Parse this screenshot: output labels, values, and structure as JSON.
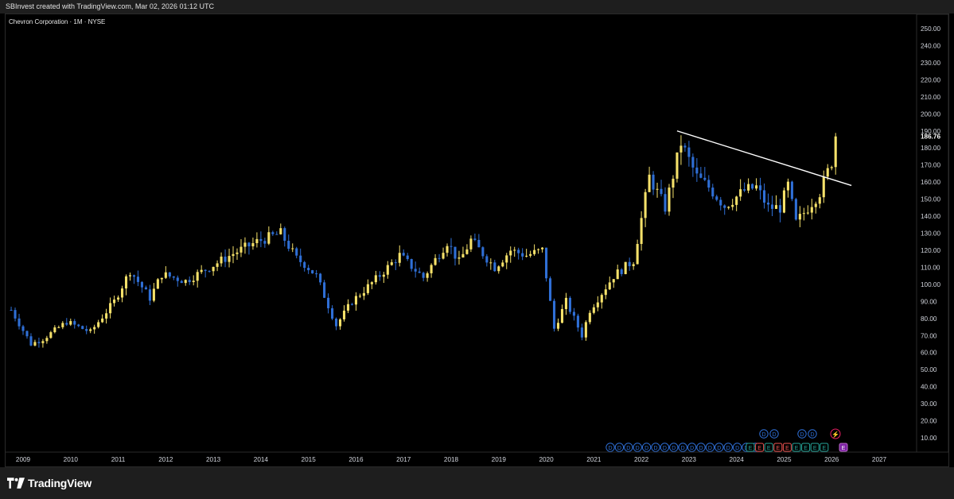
{
  "header": {
    "credit": "SBInvest created with TradingView.com, Mar 02, 2026 01:12 UTC"
  },
  "footer": {
    "brand": "TradingView"
  },
  "chart_data": {
    "type": "candlestick",
    "title": "Chevron Corporation · 1M · NYSE",
    "interval": "1M",
    "exchange": "NYSE",
    "last_price": "186.76",
    "ylim": [
      0,
      255
    ],
    "y_ticks": [
      "10.00",
      "20.00",
      "30.00",
      "40.00",
      "50.00",
      "60.00",
      "70.00",
      "80.00",
      "90.00",
      "100.00",
      "110.00",
      "120.00",
      "130.00",
      "140.00",
      "150.00",
      "160.00",
      "170.00",
      "180.00",
      "190.00",
      "200.00",
      "210.00",
      "220.00",
      "230.00",
      "240.00",
      "250.00"
    ],
    "x_ticks": [
      "2009",
      "2010",
      "2011",
      "2012",
      "2013",
      "2014",
      "2015",
      "2016",
      "2017",
      "2018",
      "2019",
      "2020",
      "2021",
      "2022",
      "2023",
      "2024",
      "2025",
      "2026",
      "2027"
    ],
    "colors": {
      "up": "#f5e16a",
      "down": "#2f6fd6",
      "trendline": "#ffffff",
      "background": "#000000"
    },
    "trendline": {
      "start": [
        "2022-10",
        190
      ],
      "end": [
        "2026-06",
        158
      ]
    },
    "yearly_path": [
      [
        "2008-10",
        85
      ],
      [
        "2009-03",
        65
      ],
      [
        "2009-06",
        68
      ],
      [
        "2009-12",
        78
      ],
      [
        "2010-06",
        72
      ],
      [
        "2010-12",
        90
      ],
      [
        "2011-04",
        108
      ],
      [
        "2011-09",
        92
      ],
      [
        "2011-12",
        106
      ],
      [
        "2012-06",
        102
      ],
      [
        "2012-12",
        110
      ],
      [
        "2013-06",
        118
      ],
      [
        "2013-12",
        125
      ],
      [
        "2014-06",
        130
      ],
      [
        "2014-10",
        115
      ],
      [
        "2014-12",
        112
      ],
      [
        "2015-03",
        105
      ],
      [
        "2015-08",
        76
      ],
      [
        "2015-12",
        90
      ],
      [
        "2016-06",
        103
      ],
      [
        "2016-12",
        117
      ],
      [
        "2017-06",
        104
      ],
      [
        "2017-12",
        125
      ],
      [
        "2018-03",
        113
      ],
      [
        "2018-06",
        126
      ],
      [
        "2018-12",
        110
      ],
      [
        "2019-04",
        120
      ],
      [
        "2019-08",
        117
      ],
      [
        "2019-12",
        120
      ],
      [
        "2020-03",
        74
      ],
      [
        "2020-06",
        90
      ],
      [
        "2020-10",
        70
      ],
      [
        "2020-12",
        85
      ],
      [
        "2021-06",
        105
      ],
      [
        "2021-11",
        114
      ],
      [
        "2022-03",
        163
      ],
      [
        "2022-07",
        145
      ],
      [
        "2022-11",
        183
      ],
      [
        "2023-03",
        163
      ],
      [
        "2023-06",
        157
      ],
      [
        "2023-10",
        146
      ],
      [
        "2024-03",
        155
      ],
      [
        "2024-06",
        157
      ],
      [
        "2024-09",
        145
      ],
      [
        "2024-12",
        145
      ],
      [
        "2025-02",
        158
      ],
      [
        "2025-04",
        136
      ],
      [
        "2025-07",
        145
      ],
      [
        "2025-10",
        154
      ],
      [
        "2026-01",
        172
      ],
      [
        "2026-02",
        186.76
      ]
    ],
    "events": {
      "dividend_row": 17,
      "earnings_row": [
        "E",
        "E",
        "E",
        "E",
        "E",
        "E",
        "E",
        "E",
        "E"
      ],
      "upper_dividends": 4,
      "split_marker": "⚡"
    },
    "event_labels": {
      "dividend": "D",
      "earnings": "E",
      "upper_dividend": "D"
    }
  }
}
